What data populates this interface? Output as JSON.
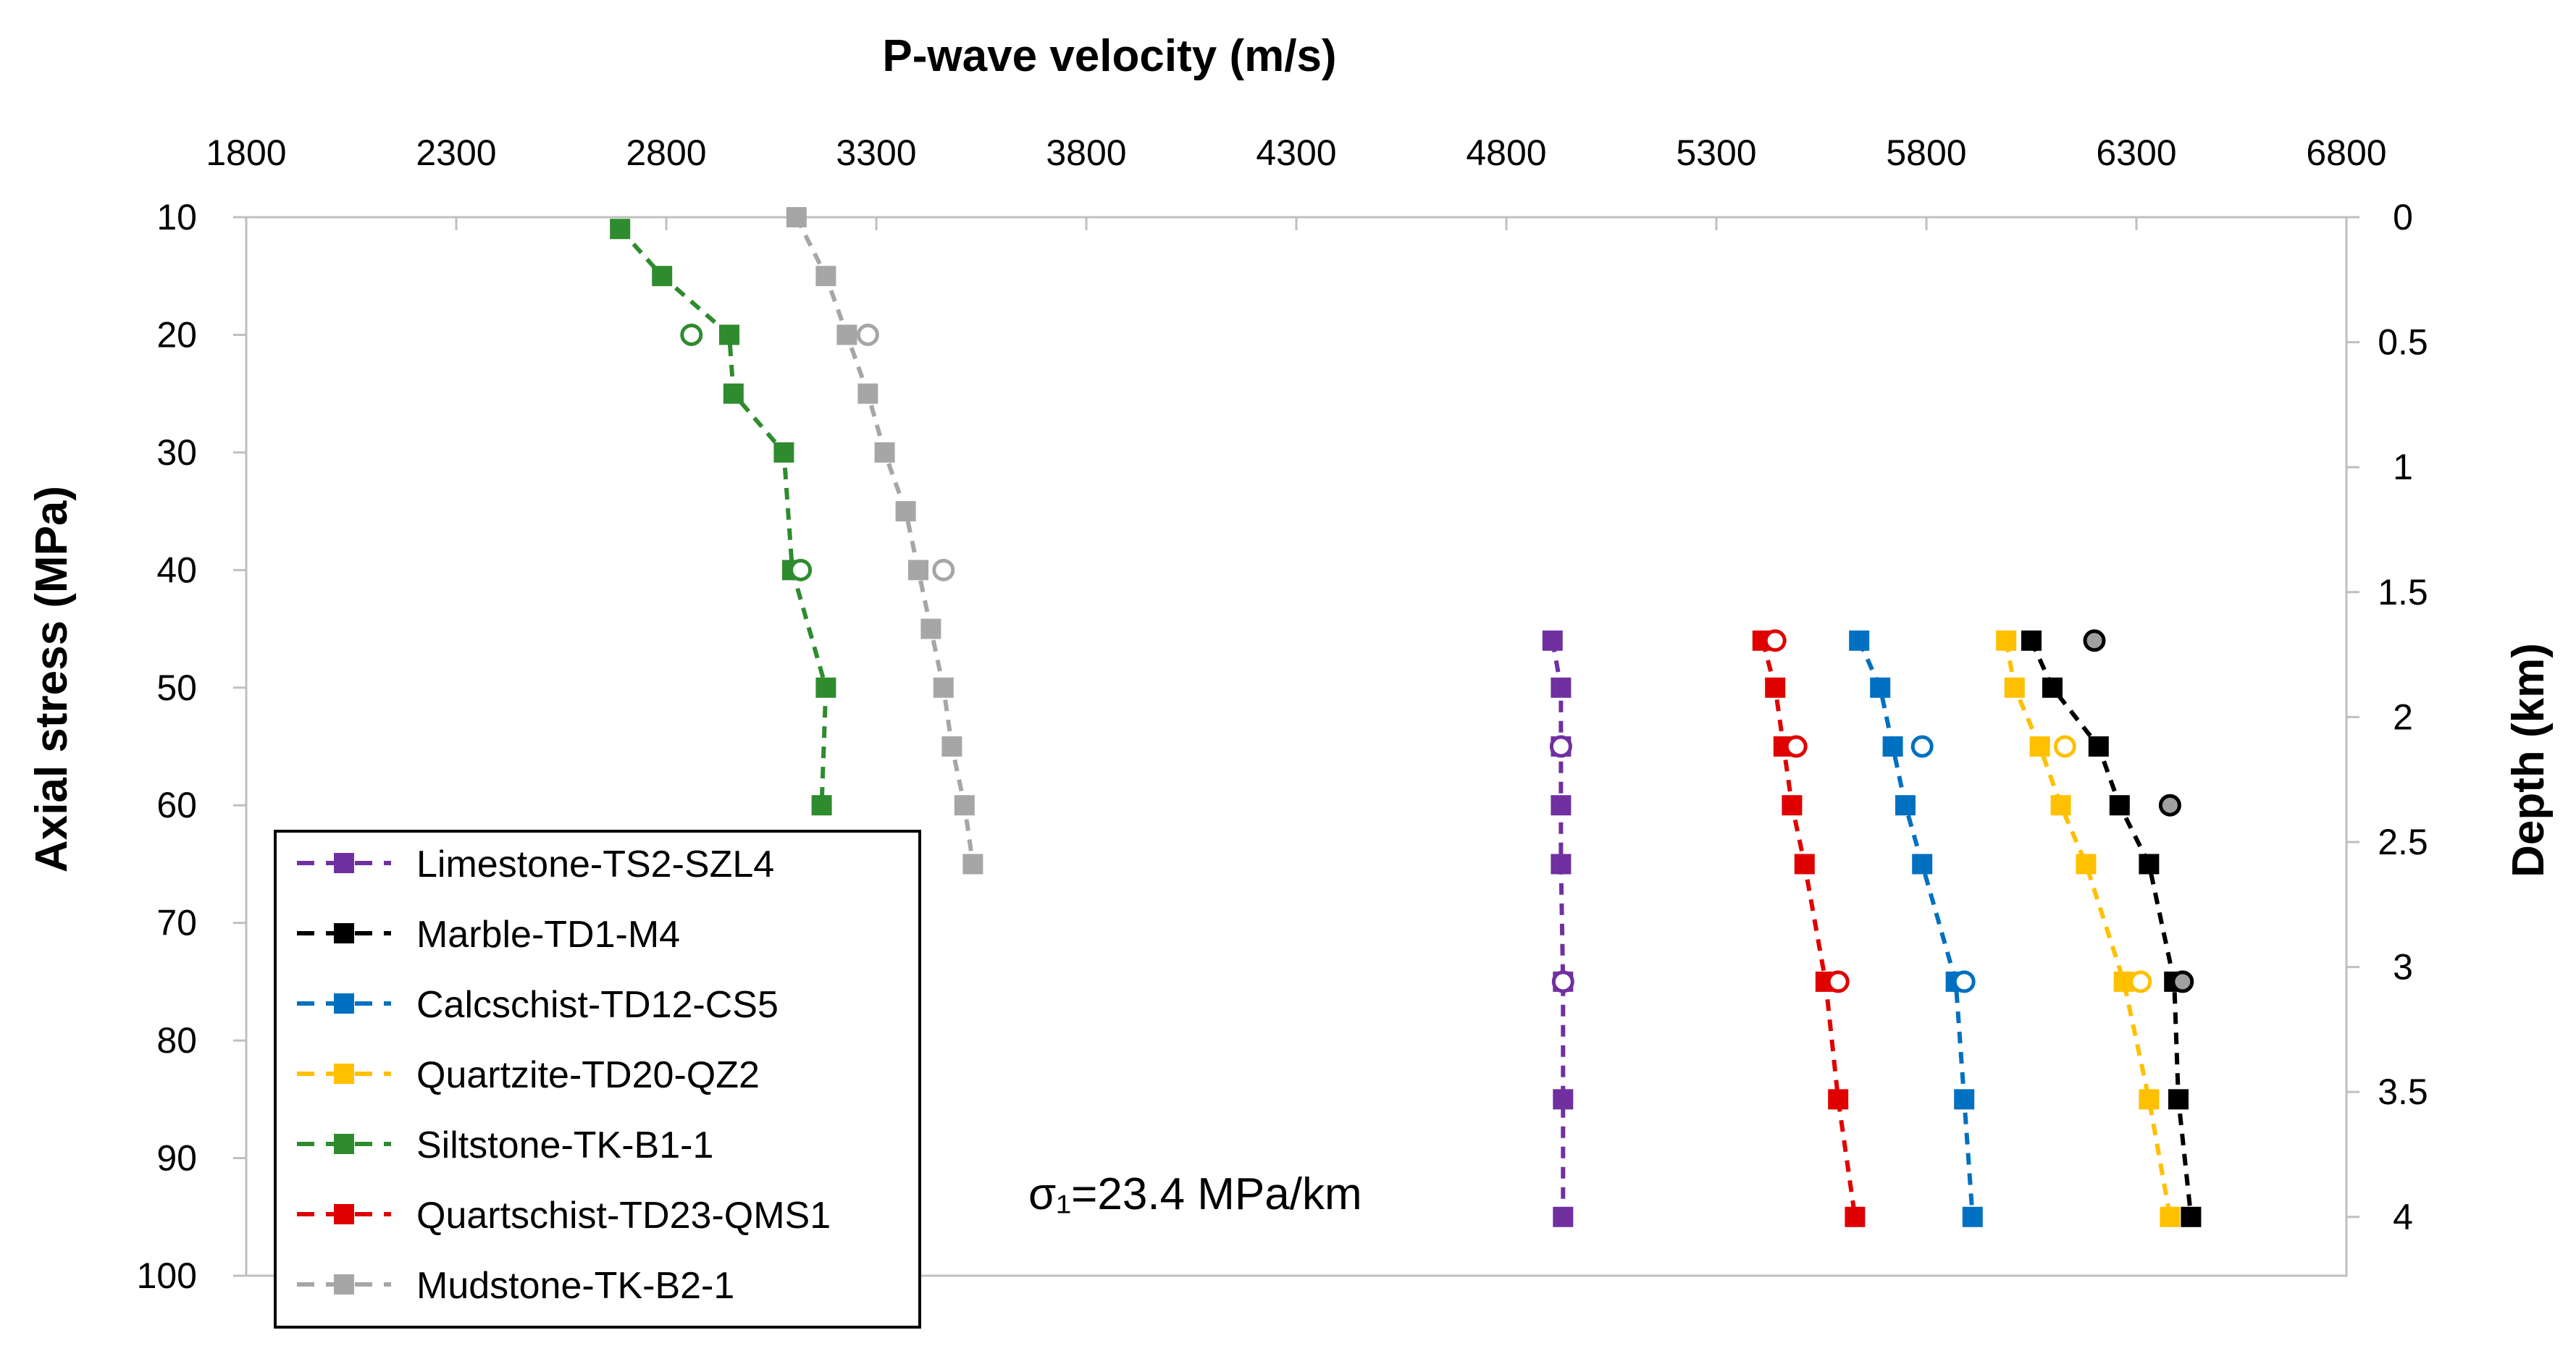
{
  "chart_data": {
    "type": "scatter",
    "title": "",
    "xlabel": "P-wave velocity (m/s)",
    "ylabel": "Axial stress (MPa)",
    "y2label": "Depth (km)",
    "xlim": [
      1800,
      6800
    ],
    "ylim": [
      10,
      100
    ],
    "y2lim": [
      0,
      4
    ],
    "xticks": [
      1800,
      2300,
      2800,
      3300,
      3800,
      4300,
      4800,
      5300,
      5800,
      6300,
      6800
    ],
    "yticks": [
      10,
      20,
      30,
      40,
      50,
      60,
      70,
      80,
      90,
      100
    ],
    "y2ticks": [
      "0",
      "0.5",
      "1",
      "1.5",
      "2",
      "2.5",
      "3",
      "3.5",
      "4"
    ],
    "legend_position": "bottom-left",
    "annotation": "σ₁=23.4 MPa/km",
    "series": [
      {
        "name": "Limestone-TS2-SZL4",
        "color": "#7030A0",
        "points": [
          [
            4910,
            46
          ],
          [
            4930,
            50
          ],
          [
            4930,
            55
          ],
          [
            4930,
            60
          ],
          [
            4930,
            65
          ],
          [
            4935,
            75
          ],
          [
            4935,
            85
          ],
          [
            4935,
            95
          ]
        ],
        "circles": [
          [
            4930,
            55
          ],
          [
            4935,
            75
          ]
        ]
      },
      {
        "name": "Marble-TD1-M4",
        "color": "#000000",
        "points": [
          [
            6050,
            46
          ],
          [
            6100,
            50
          ],
          [
            6210,
            55
          ],
          [
            6260,
            60
          ],
          [
            6330,
            65
          ],
          [
            6390,
            75
          ],
          [
            6400,
            85
          ],
          [
            6430,
            95
          ]
        ],
        "circles": [
          [
            6200,
            46
          ],
          [
            6380,
            60
          ],
          [
            6410,
            75
          ]
        ]
      },
      {
        "name": "Calcschist-TD12-CS5",
        "color": "#0070C0",
        "points": [
          [
            5640,
            46
          ],
          [
            5690,
            50
          ],
          [
            5720,
            55
          ],
          [
            5750,
            60
          ],
          [
            5790,
            65
          ],
          [
            5870,
            75
          ],
          [
            5890,
            85
          ],
          [
            5910,
            95
          ]
        ],
        "circles": [
          [
            5790,
            55
          ],
          [
            5890,
            75
          ]
        ]
      },
      {
        "name": "Quartzite-TD20-QZ2",
        "color": "#FFC000",
        "points": [
          [
            5990,
            46
          ],
          [
            6010,
            50
          ],
          [
            6070,
            55
          ],
          [
            6120,
            60
          ],
          [
            6180,
            65
          ],
          [
            6270,
            75
          ],
          [
            6330,
            85
          ],
          [
            6380,
            95
          ]
        ],
        "circles": [
          [
            6130,
            55
          ],
          [
            6310,
            75
          ]
        ]
      },
      {
        "name": "Siltstone-TK-B1-1",
        "color": "#2E8B2E",
        "points": [
          [
            2690,
            11
          ],
          [
            2790,
            15
          ],
          [
            2950,
            20
          ],
          [
            2960,
            25
          ],
          [
            3080,
            30
          ],
          [
            3100,
            40
          ],
          [
            3180,
            50
          ],
          [
            3170,
            60
          ]
        ],
        "circles": [
          [
            2860,
            20
          ],
          [
            3120,
            40
          ]
        ]
      },
      {
        "name": "Quartschist-TD23-QMS1",
        "color": "#E00000",
        "points": [
          [
            5410,
            46
          ],
          [
            5440,
            50
          ],
          [
            5460,
            55
          ],
          [
            5480,
            60
          ],
          [
            5510,
            65
          ],
          [
            5560,
            75
          ],
          [
            5590,
            85
          ],
          [
            5630,
            95
          ]
        ],
        "circles": [
          [
            5440,
            46
          ],
          [
            5490,
            55
          ],
          [
            5590,
            75
          ]
        ]
      },
      {
        "name": "Mudstone-TK-B2-1",
        "color": "#A6A6A6",
        "points": [
          [
            3110,
            10
          ],
          [
            3180,
            15
          ],
          [
            3230,
            20
          ],
          [
            3280,
            25
          ],
          [
            3320,
            30
          ],
          [
            3370,
            35
          ],
          [
            3400,
            40
          ],
          [
            3430,
            45
          ],
          [
            3460,
            50
          ],
          [
            3480,
            55
          ],
          [
            3510,
            60
          ],
          [
            3530,
            65
          ]
        ],
        "circles": [
          [
            3280,
            20
          ],
          [
            3460,
            40
          ]
        ]
      }
    ]
  }
}
